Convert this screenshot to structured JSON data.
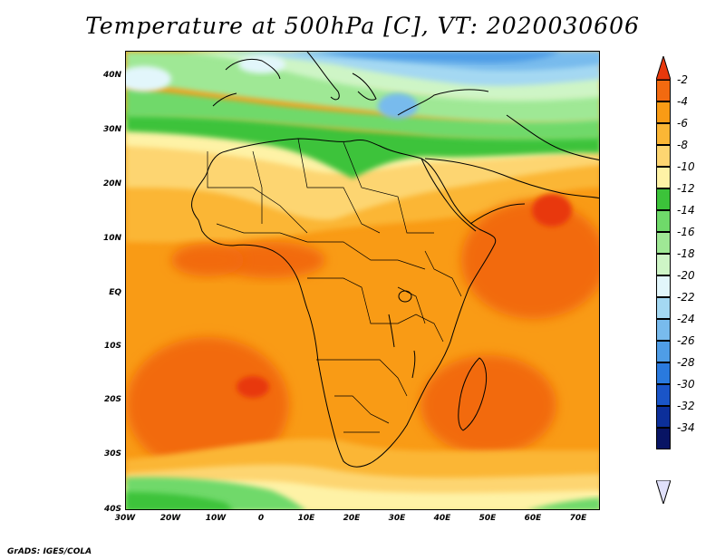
{
  "title": "Temperature at 500hPa [C], VT: 2020030606",
  "footer": "GrADS: IGES/COLA",
  "map": {
    "lat_ticks": [
      "40N",
      "30N",
      "20N",
      "10N",
      "EQ",
      "10S",
      "20S",
      "30S",
      "40S"
    ],
    "lat_values": [
      40,
      30,
      20,
      10,
      0,
      -10,
      -20,
      -30,
      -40
    ],
    "lon_ticks": [
      "30W",
      "20W",
      "10W",
      "0",
      "10E",
      "20E",
      "30E",
      "40E",
      "50E",
      "60E",
      "70E"
    ],
    "lon_values": [
      -30,
      -20,
      -10,
      0,
      10,
      20,
      30,
      40,
      50,
      60,
      70
    ],
    "extent": {
      "lon_min": -30,
      "lon_max": 75,
      "lat_min": -40,
      "lat_max": 45
    }
  },
  "colorbar": {
    "labels": [
      "-2",
      "-4",
      "-6",
      "-8",
      "-10",
      "-12",
      "-14",
      "-16",
      "-18",
      "-20",
      "-22",
      "-24",
      "-26",
      "-28",
      "-30",
      "-32",
      "-34"
    ],
    "colors": [
      "#e8380c",
      "#f26a10",
      "#f99b15",
      "#fbb635",
      "#fdd571",
      "#fef2a6",
      "#3cc33a",
      "#6fd96a",
      "#9fe895",
      "#cef5c6",
      "#e2f6fb",
      "#a4d8f2",
      "#78bbed",
      "#4f9de6",
      "#2a7ade",
      "#1a55c8",
      "#0c2f9a",
      "#081464"
    ],
    "top_color": "#e8380c",
    "bottom_color": "#e0e0fa"
  }
}
